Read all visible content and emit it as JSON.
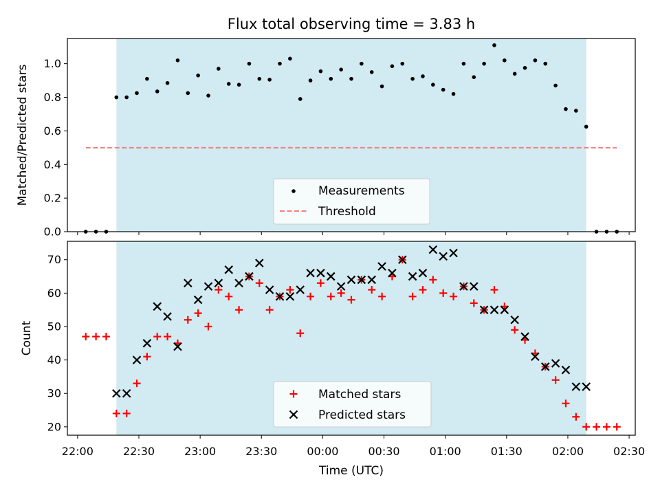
{
  "chart_data": [
    {
      "type": "scatter",
      "title": "Flux total observing time = 3.83 h",
      "ylabel": "Matched/Predicted stars",
      "ylim": [
        0,
        1.15
      ],
      "yticks": [
        "0.0",
        "0.2",
        "0.4",
        "0.6",
        "0.8",
        "1.0"
      ],
      "shaded_interval": [
        "22:19",
        "02:09"
      ],
      "shade_color": "#add8e6",
      "legend": {
        "placement": "lower center"
      },
      "series": [
        {
          "name": "Measurements",
          "marker": "dot",
          "color": "#000000",
          "points": [
            [
              "22:04",
              0.0
            ],
            [
              "22:09",
              0.0
            ],
            [
              "22:14",
              0.0
            ],
            [
              "22:19",
              0.8
            ],
            [
              "22:24",
              0.8
            ],
            [
              "22:29",
              0.825
            ],
            [
              "22:34",
              0.91
            ],
            [
              "22:39",
              0.835
            ],
            [
              "22:44",
              0.885
            ],
            [
              "22:49",
              1.02
            ],
            [
              "22:54",
              0.825
            ],
            [
              "22:59",
              0.93
            ],
            [
              "23:04",
              0.81
            ],
            [
              "23:09",
              0.97
            ],
            [
              "23:14",
              0.88
            ],
            [
              "23:19",
              0.875
            ],
            [
              "23:24",
              1.0
            ],
            [
              "23:29",
              0.91
            ],
            [
              "23:34",
              0.905
            ],
            [
              "23:39",
              1.0
            ],
            [
              "23:44",
              1.03
            ],
            [
              "23:49",
              0.79
            ],
            [
              "23:54",
              0.9
            ],
            [
              "23:59",
              0.955
            ],
            [
              "00:04",
              0.91
            ],
            [
              "00:09",
              0.965
            ],
            [
              "00:14",
              0.91
            ],
            [
              "00:19",
              1.0
            ],
            [
              "00:24",
              0.95
            ],
            [
              "00:29",
              0.865
            ],
            [
              "00:34",
              0.985
            ],
            [
              "00:39",
              1.0
            ],
            [
              "00:44",
              0.91
            ],
            [
              "00:49",
              0.925
            ],
            [
              "00:54",
              0.875
            ],
            [
              "00:59",
              0.845
            ],
            [
              "01:04",
              0.82
            ],
            [
              "01:09",
              1.0
            ],
            [
              "01:14",
              0.92
            ],
            [
              "01:19",
              1.0
            ],
            [
              "01:24",
              1.11
            ],
            [
              "01:29",
              1.02
            ],
            [
              "01:34",
              0.94
            ],
            [
              "01:39",
              0.975
            ],
            [
              "01:44",
              1.02
            ],
            [
              "01:49",
              1.0
            ],
            [
              "01:54",
              0.87
            ],
            [
              "01:59",
              0.73
            ],
            [
              "02:04",
              0.72
            ],
            [
              "02:09",
              0.625
            ],
            [
              "02:14",
              0.0
            ],
            [
              "02:19",
              0.0
            ],
            [
              "02:24",
              0.0
            ]
          ]
        },
        {
          "name": "Threshold",
          "marker": "dashed-line",
          "color": "#f08080",
          "points": [
            [
              "22:04",
              0.5
            ],
            [
              "02:24",
              0.5
            ]
          ]
        }
      ]
    },
    {
      "type": "scatter",
      "xlabel": "Time (UTC)",
      "ylabel": "Count",
      "ylim": [
        17.5,
        75.5
      ],
      "yticks": [
        "20",
        "30",
        "40",
        "50",
        "60",
        "70"
      ],
      "xlim": [
        "21:55",
        "02:33"
      ],
      "xticks": [
        "22:00",
        "22:30",
        "23:00",
        "23:30",
        "00:00",
        "00:30",
        "01:00",
        "01:30",
        "02:00",
        "02:30"
      ],
      "shaded_interval": [
        "22:19",
        "02:09"
      ],
      "shade_color": "#add8e6",
      "legend": {
        "placement": "lower center"
      },
      "series": [
        {
          "name": "Matched stars",
          "marker": "plus",
          "color": "#ff0000",
          "points": [
            [
              "22:04",
              47
            ],
            [
              "22:09",
              47
            ],
            [
              "22:14",
              47
            ],
            [
              "22:19",
              24
            ],
            [
              "22:24",
              24
            ],
            [
              "22:29",
              33
            ],
            [
              "22:34",
              41
            ],
            [
              "22:39",
              47
            ],
            [
              "22:44",
              47
            ],
            [
              "22:49",
              45
            ],
            [
              "22:54",
              52
            ],
            [
              "22:59",
              54
            ],
            [
              "23:04",
              50
            ],
            [
              "23:09",
              61
            ],
            [
              "23:14",
              59
            ],
            [
              "23:19",
              55
            ],
            [
              "23:24",
              65
            ],
            [
              "23:29",
              63
            ],
            [
              "23:34",
              55
            ],
            [
              "23:39",
              59
            ],
            [
              "23:44",
              61
            ],
            [
              "23:49",
              48
            ],
            [
              "23:54",
              59
            ],
            [
              "23:59",
              63
            ],
            [
              "00:04",
              59
            ],
            [
              "00:09",
              60
            ],
            [
              "00:14",
              58
            ],
            [
              "00:19",
              64
            ],
            [
              "00:24",
              61
            ],
            [
              "00:29",
              59
            ],
            [
              "00:34",
              65
            ],
            [
              "00:39",
              70
            ],
            [
              "00:44",
              59
            ],
            [
              "00:49",
              61
            ],
            [
              "00:54",
              64
            ],
            [
              "00:59",
              60
            ],
            [
              "01:04",
              59
            ],
            [
              "01:09",
              62
            ],
            [
              "01:14",
              57
            ],
            [
              "01:19",
              55
            ],
            [
              "01:24",
              61
            ],
            [
              "01:29",
              56
            ],
            [
              "01:34",
              49
            ],
            [
              "01:39",
              46
            ],
            [
              "01:44",
              42
            ],
            [
              "01:49",
              38
            ],
            [
              "01:54",
              34
            ],
            [
              "01:59",
              27
            ],
            [
              "02:04",
              23
            ],
            [
              "02:09",
              20
            ],
            [
              "02:14",
              20
            ],
            [
              "02:19",
              20
            ],
            [
              "02:24",
              20
            ]
          ]
        },
        {
          "name": "Predicted stars",
          "marker": "x",
          "color": "#000000",
          "points": [
            [
              "22:19",
              30
            ],
            [
              "22:24",
              30
            ],
            [
              "22:29",
              40
            ],
            [
              "22:34",
              45
            ],
            [
              "22:39",
              56
            ],
            [
              "22:44",
              53
            ],
            [
              "22:49",
              44
            ],
            [
              "22:54",
              63
            ],
            [
              "22:59",
              58
            ],
            [
              "23:04",
              62
            ],
            [
              "23:09",
              63
            ],
            [
              "23:14",
              67
            ],
            [
              "23:19",
              63
            ],
            [
              "23:24",
              65
            ],
            [
              "23:29",
              69
            ],
            [
              "23:34",
              61
            ],
            [
              "23:39",
              59
            ],
            [
              "23:44",
              59
            ],
            [
              "23:49",
              61
            ],
            [
              "23:54",
              66
            ],
            [
              "23:59",
              66
            ],
            [
              "00:04",
              65
            ],
            [
              "00:09",
              62
            ],
            [
              "00:14",
              64
            ],
            [
              "00:19",
              64
            ],
            [
              "00:24",
              64
            ],
            [
              "00:29",
              68
            ],
            [
              "00:34",
              66
            ],
            [
              "00:39",
              70
            ],
            [
              "00:44",
              65
            ],
            [
              "00:49",
              66
            ],
            [
              "00:54",
              73
            ],
            [
              "00:59",
              71
            ],
            [
              "01:04",
              72
            ],
            [
              "01:09",
              62
            ],
            [
              "01:14",
              62
            ],
            [
              "01:19",
              55
            ],
            [
              "01:24",
              55
            ],
            [
              "01:29",
              55
            ],
            [
              "01:34",
              52
            ],
            [
              "01:39",
              47
            ],
            [
              "01:44",
              41
            ],
            [
              "01:49",
              38
            ],
            [
              "01:54",
              39
            ],
            [
              "01:59",
              37
            ],
            [
              "02:04",
              32
            ],
            [
              "02:09",
              32
            ]
          ]
        }
      ]
    }
  ]
}
